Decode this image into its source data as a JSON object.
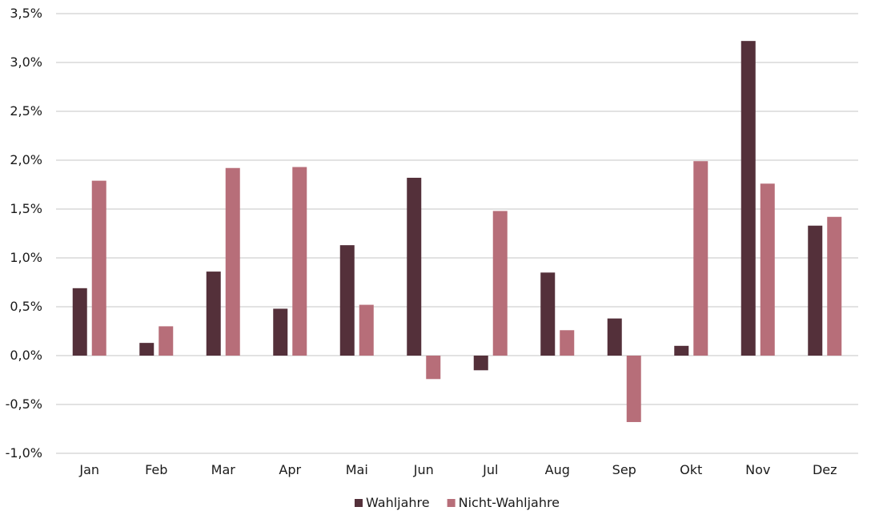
{
  "chart_data": {
    "type": "bar",
    "categories": [
      "Jan",
      "Feb",
      "Mar",
      "Apr",
      "Mai",
      "Jun",
      "Jul",
      "Aug",
      "Sep",
      "Okt",
      "Nov",
      "Dez"
    ],
    "series": [
      {
        "name": "Wahljahre",
        "color": "#54303a",
        "values": [
          0.69,
          0.13,
          0.86,
          0.48,
          1.13,
          1.82,
          -0.15,
          0.85,
          0.38,
          0.1,
          3.22,
          1.33
        ]
      },
      {
        "name": "Nicht-Wahljahre",
        "color": "#b76e79",
        "values": [
          1.79,
          0.3,
          1.92,
          1.93,
          0.52,
          -0.24,
          1.48,
          0.26,
          -0.68,
          1.99,
          1.76,
          1.42
        ]
      }
    ],
    "ylim": [
      -1.0,
      3.5
    ],
    "ytick_values": [
      -1.0,
      -0.5,
      0.0,
      0.5,
      1.0,
      1.5,
      2.0,
      2.5,
      3.0,
      3.5
    ],
    "ytick_labels": [
      "-1,0%",
      "-0,5%",
      "0,0%",
      "0,5%",
      "1,0%",
      "1,5%",
      "2,0%",
      "2,5%",
      "3,0%",
      "3,5%"
    ],
    "grid": true,
    "legend_position": "bottom-center",
    "title": "",
    "xlabel": "",
    "ylabel": ""
  }
}
